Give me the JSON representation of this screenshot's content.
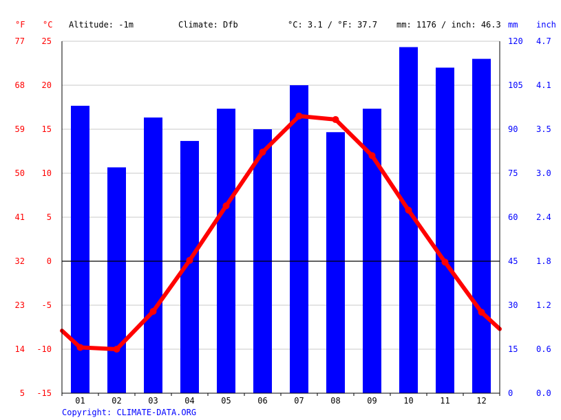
{
  "header": {
    "unit_f": "°F",
    "unit_c": "°C",
    "altitude": "Altitude: -1m",
    "climate": "Climate: Dfb",
    "temp_avg": "°C: 3.1 / °F: 37.7",
    "precip_total": "mm: 1176 / inch: 46.3",
    "unit_mm": "mm",
    "unit_inch": "inch"
  },
  "copyright": "Copyright: CLIMATE-DATA.ORG",
  "colors": {
    "temperature": "#ff0000",
    "precipitation": "#0000ff",
    "grid": "#c8c8c8",
    "zero_line": "#000000"
  },
  "chart_data": {
    "type": "bar",
    "categories": [
      "01",
      "02",
      "03",
      "04",
      "05",
      "06",
      "07",
      "08",
      "09",
      "10",
      "11",
      "12"
    ],
    "series": [
      {
        "type": "bar",
        "axis": "right",
        "unit": "mm",
        "values": [
          98,
          77,
          94,
          86,
          97,
          90,
          105,
          89,
          97,
          118,
          111,
          114
        ]
      },
      {
        "type": "line",
        "axis": "left",
        "unit": "°C",
        "values": [
          -9.8,
          -10.0,
          -5.7,
          0.1,
          6.3,
          12.4,
          16.5,
          16.1,
          12.0,
          5.8,
          -0.1,
          -5.8
        ],
        "line_start": -7.9,
        "line_end": -7.7
      }
    ],
    "left_axis_c": {
      "ticks": [
        "25",
        "20",
        "15",
        "10",
        "5",
        "0",
        "-5",
        "-10",
        "-15"
      ],
      "range": [
        -15,
        25
      ]
    },
    "left_axis_f": {
      "ticks": [
        "77",
        "68",
        "59",
        "50",
        "41",
        "32",
        "23",
        "14",
        "5"
      ]
    },
    "right_axis_mm": {
      "ticks": [
        "120",
        "105",
        "90",
        "75",
        "60",
        "45",
        "30",
        "15",
        "0"
      ],
      "range": [
        0,
        120
      ]
    },
    "right_axis_inch": {
      "ticks": [
        "4.7",
        "4.1",
        "3.5",
        "3.0",
        "2.4",
        "1.8",
        "1.2",
        "0.6",
        "0.0"
      ]
    },
    "grid": true
  }
}
